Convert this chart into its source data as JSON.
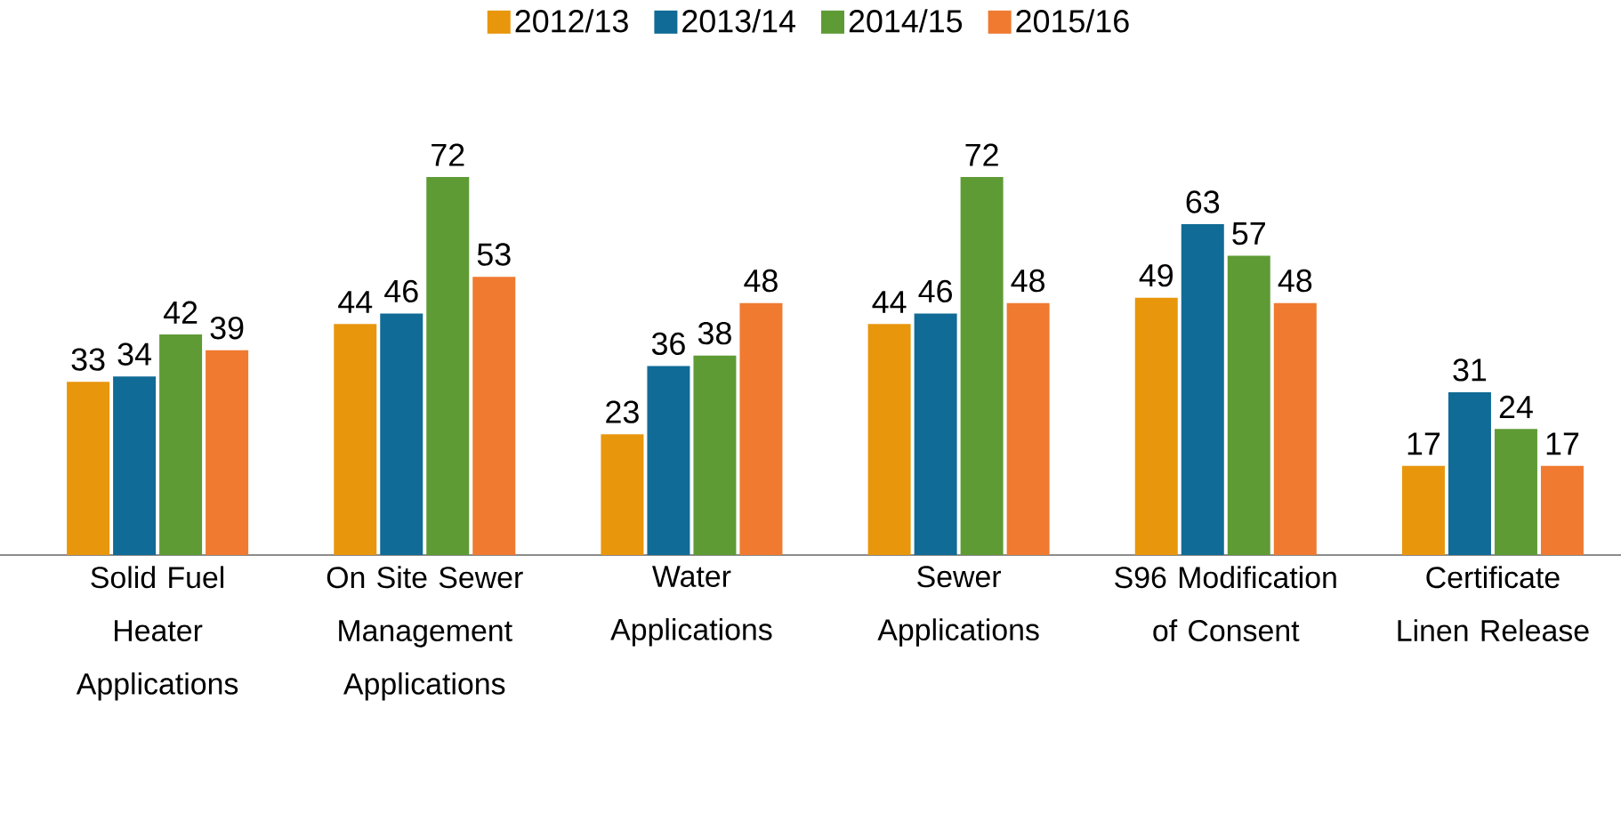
{
  "chart_data": {
    "type": "bar",
    "categories": [
      "Solid Fuel Heater Applications",
      "On Site Sewer Management Applications",
      "Water Applications",
      "Sewer Applications",
      "S96 Modification of Consent",
      "Certificate Linen Release"
    ],
    "series": [
      {
        "name": "2012/13",
        "color": "#e8960c",
        "values": [
          33,
          44,
          23,
          44,
          49,
          17
        ]
      },
      {
        "name": "2013/14",
        "color": "#106b96",
        "values": [
          34,
          46,
          36,
          46,
          63,
          31
        ]
      },
      {
        "name": "2014/15",
        "color": "#5f9b35",
        "values": [
          42,
          72,
          38,
          72,
          57,
          24
        ]
      },
      {
        "name": "2015/16",
        "color": "#ef7a30",
        "values": [
          39,
          53,
          48,
          48,
          48,
          17
        ]
      }
    ],
    "data_labels": true,
    "legend": "top"
  }
}
